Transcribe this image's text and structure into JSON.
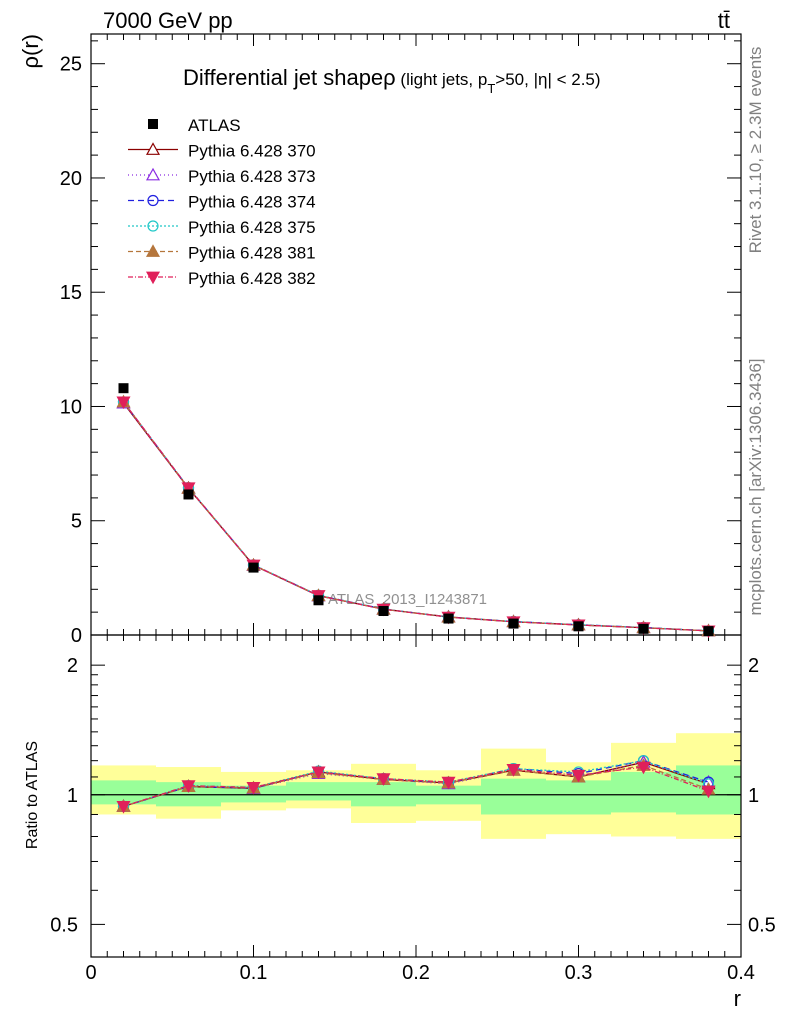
{
  "header": {
    "left": "7000 GeV pp",
    "right": "tt̄"
  },
  "side_text": {
    "top": "Rivet 3.1.10, ≥ 2.3M events",
    "bottom": "mcplots.cern.ch [arXiv:1306.3436]"
  },
  "watermark": "ATLAS_2013_I1243871",
  "chart_data": {
    "type": "line",
    "title_main": "Differential jet shape",
    "title_rho": "ρ",
    "title_open": " (light jets, p",
    "title_sub": "T",
    "title_close": ">50, |η| < 2.5)",
    "ylabel_main": "ρ(r)",
    "ylabel_ratio": "Ratio to ATLAS",
    "xlabel": "r",
    "xlim": [
      0,
      0.4
    ],
    "ylim_main": [
      0,
      26.3
    ],
    "ylim_ratio": [
      0.42,
      2.35
    ],
    "ratio_scale": "log",
    "x_ticks": [
      "0",
      "0.1",
      "0.2",
      "0.3",
      "0.4"
    ],
    "y_ticks_main": [
      "0",
      "5",
      "10",
      "15",
      "20",
      "25"
    ],
    "y_ticks_ratio": [
      "0.5",
      "1",
      "2"
    ],
    "x": [
      0.02,
      0.06,
      0.1,
      0.14,
      0.18,
      0.22,
      0.26,
      0.3,
      0.34,
      0.38
    ],
    "bin_edges": [
      0.0,
      0.04,
      0.08,
      0.12,
      0.16,
      0.2,
      0.24,
      0.28,
      0.32,
      0.36,
      0.4
    ],
    "data": {
      "name": "ATLAS",
      "values": [
        10.8,
        6.15,
        2.95,
        1.52,
        1.05,
        0.72,
        0.5,
        0.38,
        0.27,
        0.17
      ]
    },
    "uncertainty_bands": {
      "inner_green": [
        [
          0.95,
          1.08
        ],
        [
          0.94,
          1.07
        ],
        [
          0.96,
          1.05
        ],
        [
          0.97,
          1.07
        ],
        [
          0.94,
          1.07
        ],
        [
          0.95,
          1.05
        ],
        [
          0.9,
          1.09
        ],
        [
          0.9,
          1.08
        ],
        [
          0.91,
          1.13
        ],
        [
          0.9,
          1.17
        ]
      ],
      "outer_yellow": [
        [
          0.9,
          1.17
        ],
        [
          0.88,
          1.16
        ],
        [
          0.92,
          1.13
        ],
        [
          0.93,
          1.14
        ],
        [
          0.86,
          1.18
        ],
        [
          0.87,
          1.14
        ],
        [
          0.79,
          1.28
        ],
        [
          0.81,
          1.19
        ],
        [
          0.8,
          1.32
        ],
        [
          0.79,
          1.39
        ]
      ]
    },
    "series": [
      {
        "name": "Pythia 6.428 370",
        "color": "#8b0000",
        "dash": "solid",
        "marker": "triangle-open",
        "values": [
          10.15,
          6.42,
          3.05,
          1.72,
          1.13,
          0.79,
          0.58,
          0.44,
          0.32,
          0.18
        ],
        "ratio": [
          0.94,
          1.045,
          1.035,
          1.13,
          1.085,
          1.065,
          1.14,
          1.1,
          1.19,
          1.06
        ]
      },
      {
        "name": "Pythia 6.428 373",
        "color": "#8a2be2",
        "dash": "1,3",
        "marker": "triangle-open",
        "values": [
          10.15,
          6.43,
          3.05,
          1.71,
          1.13,
          0.79,
          0.58,
          0.44,
          0.32,
          0.18
        ],
        "ratio": [
          0.94,
          1.045,
          1.035,
          1.12,
          1.085,
          1.06,
          1.14,
          1.1,
          1.19,
          1.07
        ]
      },
      {
        "name": "Pythia 6.428 374",
        "color": "#2020e0",
        "dash": "6,4",
        "marker": "circle-open",
        "values": [
          10.2,
          6.44,
          3.06,
          1.73,
          1.14,
          0.78,
          0.59,
          0.45,
          0.33,
          0.18
        ],
        "ratio": [
          0.94,
          1.045,
          1.037,
          1.13,
          1.09,
          1.065,
          1.15,
          1.12,
          1.2,
          1.07
        ]
      },
      {
        "name": "Pythia 6.428 375",
        "color": "#20c8c8",
        "dash": "2,2",
        "marker": "circle-open",
        "values": [
          10.2,
          6.45,
          3.07,
          1.74,
          1.14,
          0.78,
          0.59,
          0.45,
          0.33,
          0.18
        ],
        "ratio": [
          0.94,
          1.05,
          1.04,
          1.135,
          1.09,
          1.07,
          1.15,
          1.13,
          1.2,
          1.06
        ]
      },
      {
        "name": "Pythia 6.428 381",
        "color": "#b5763c",
        "dash": "5,3",
        "marker": "triangle-filled",
        "values": [
          10.2,
          6.43,
          3.06,
          1.72,
          1.13,
          0.78,
          0.58,
          0.44,
          0.32,
          0.18
        ],
        "ratio": [
          0.94,
          1.045,
          1.038,
          1.125,
          1.085,
          1.065,
          1.14,
          1.1,
          1.17,
          1.03
        ]
      },
      {
        "name": "Pythia 6.428 382",
        "color": "#e0205a",
        "dash": "5,2,1,2",
        "marker": "triangle-down-filled",
        "values": [
          10.2,
          6.44,
          3.06,
          1.73,
          1.13,
          0.78,
          0.58,
          0.44,
          0.32,
          0.18
        ],
        "ratio": [
          0.94,
          1.05,
          1.04,
          1.13,
          1.09,
          1.07,
          1.145,
          1.11,
          1.16,
          1.02
        ]
      }
    ],
    "legend_position": "top-left"
  }
}
